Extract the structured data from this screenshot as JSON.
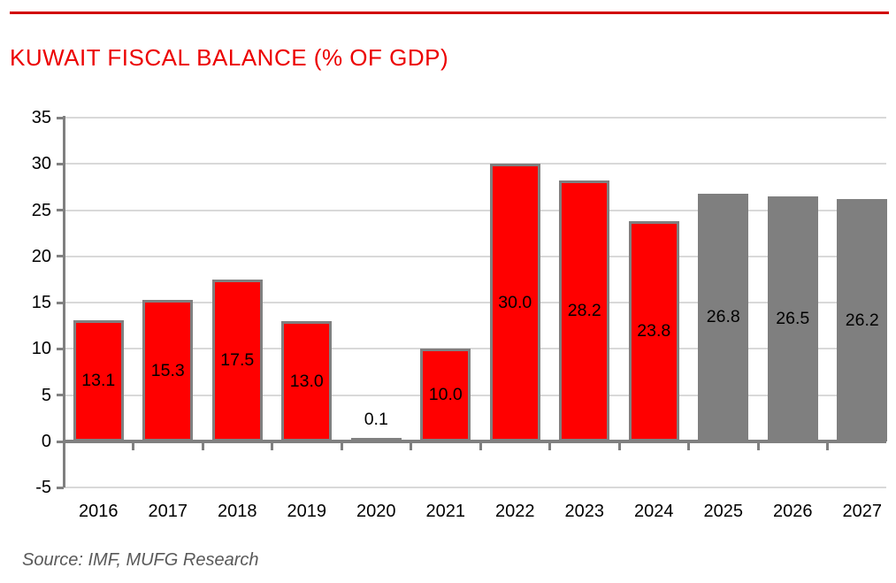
{
  "header": {
    "title": "KUWAIT FISCAL BALANCE (% OF GDP)"
  },
  "source": {
    "text": "Source: IMF, MUFG Research"
  },
  "colors": {
    "title_red": "#ec0000",
    "rule_red": "#d10000",
    "bar_actual": "#ff0000",
    "bar_forecast": "#7f7f7f",
    "bar_border": "#808080",
    "axis": "#808080",
    "gridline": "#d9d9d9",
    "data_label": "#000000",
    "source_text": "#595959"
  },
  "chart_data": {
    "type": "bar",
    "title": "KUWAIT FISCAL BALANCE (% OF GDP)",
    "categories": [
      "2016",
      "2017",
      "2018",
      "2019",
      "2020",
      "2021",
      "2022",
      "2023",
      "2024",
      "2025",
      "2026",
      "2027"
    ],
    "values": [
      13.1,
      15.3,
      17.5,
      13.0,
      0.1,
      10.0,
      30.0,
      28.2,
      23.8,
      26.8,
      26.5,
      26.2
    ],
    "labels": [
      "13.1",
      "15.3",
      "17.5",
      "13.0",
      "0.1",
      "10.0",
      "30.0",
      "28.2",
      "23.8",
      "26.8",
      "26.5",
      "26.2"
    ],
    "forecast_start_index": 9,
    "xlabel": "",
    "ylabel": "",
    "ylim": [
      -5,
      35
    ],
    "ytick_step": 5,
    "yticks": [
      35,
      30,
      25,
      20,
      15,
      10,
      5,
      0,
      -5
    ],
    "grid": true,
    "legend_position": "none",
    "series_colors": {
      "actual": "#ff0000",
      "forecast": "#7f7f7f"
    }
  }
}
